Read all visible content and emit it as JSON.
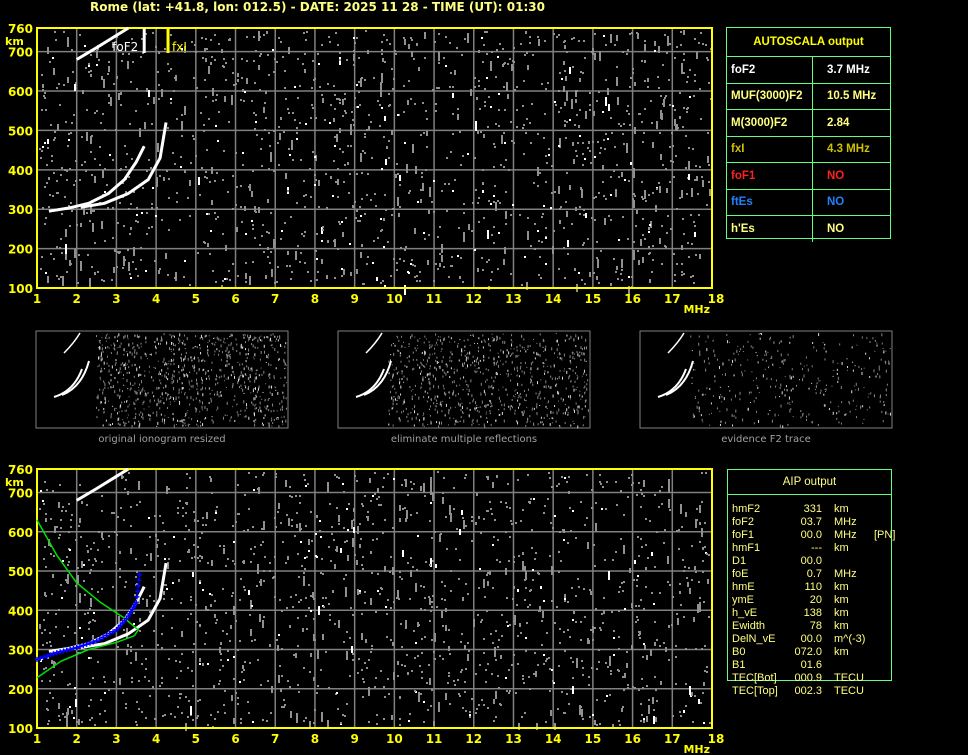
{
  "header": {
    "title": "Rome (lat: +41.8, lon: 012.5) - DATE: 2025 11 28 - TIME (UT): 01:30"
  },
  "colors": {
    "axis": "#ffff00",
    "grid": "#808080",
    "trace": "#ffffff",
    "noise": "#909090",
    "profile": "#00e000",
    "fitted_points": "#0000ff",
    "table_border": "#60ff80",
    "text": "#ffff80",
    "foF1": "#ff2020",
    "ftEs": "#2080ff",
    "fxI": "#d0c000"
  },
  "autoscala": {
    "title": "AUTOSCALA output",
    "rows": [
      {
        "label": "foF2",
        "value": "3.7 MHz",
        "color": "#ffffff"
      },
      {
        "label": "MUF(3000)F2",
        "value": "10.5 MHz",
        "color": "#ffff80"
      },
      {
        "label": "M(3000)F2",
        "value": "2.84",
        "color": "#ffff80"
      },
      {
        "label": "fxI",
        "value": "4.3 MHz",
        "color": "#d0c000"
      },
      {
        "label": "foF1",
        "value": "NO",
        "color": "#ff2020"
      },
      {
        "label": "ftEs",
        "value": "NO",
        "color": "#2080ff"
      },
      {
        "label": "h'Es",
        "value": "NO",
        "color": "#ffff80"
      }
    ]
  },
  "aip": {
    "title": "AIP output",
    "rows": [
      [
        "hmF2",
        "331",
        "km",
        ""
      ],
      [
        "foF2",
        "03.7",
        "MHz",
        ""
      ],
      [
        "foF1",
        "00.0",
        "MHz",
        "[PN]"
      ],
      [
        "hmF1",
        "---",
        "km",
        ""
      ],
      [
        "D1",
        "00.0",
        "",
        ""
      ],
      [
        "foE",
        "0.7",
        "MHz",
        ""
      ],
      [
        "hmE",
        "110",
        "km",
        ""
      ],
      [
        "ymE",
        "20",
        "km",
        ""
      ],
      [
        "h_vE",
        "138",
        "km",
        ""
      ],
      [
        "Ewidth",
        "78",
        "km",
        ""
      ],
      [
        "DelN_vE",
        "00.0",
        "m^(-3)",
        ""
      ],
      [
        "B0",
        "072.0",
        "km",
        ""
      ],
      [
        "B1",
        "01.6",
        "",
        ""
      ],
      [
        "TEC[Bot]",
        "000.9",
        "TECU",
        ""
      ],
      [
        "TEC[Top]",
        "002.3",
        "TECU",
        ""
      ]
    ]
  },
  "thumbnails": [
    {
      "caption": "original ionogram resized"
    },
    {
      "caption": "eliminate multiple reflections"
    },
    {
      "caption": "evidence F2 trace"
    }
  ],
  "chart_data": [
    {
      "type": "scatter",
      "xlabel": "MHz",
      "ylabel": "km",
      "xlim": [
        1,
        18
      ],
      "ylim": [
        100,
        760
      ],
      "xticks": [
        "1",
        "2",
        "3",
        "4",
        "5",
        "6",
        "7",
        "8",
        "9",
        "10",
        "11",
        "12",
        "13",
        "14",
        "15",
        "16",
        "17",
        "18"
      ],
      "yticks": [
        "100",
        "200",
        "300",
        "400",
        "500",
        "600",
        "700",
        "760"
      ],
      "grid": true,
      "annotations": [
        {
          "text": "foF2",
          "x": 3.7
        },
        {
          "text": "fxI",
          "x": 4.3
        }
      ],
      "traces": [
        {
          "role": "o-trace",
          "points": [
            [
              1.3,
              295
            ],
            [
              1.8,
              303
            ],
            [
              2.3,
              315
            ],
            [
              2.8,
              340
            ],
            [
              3.2,
              375
            ],
            [
              3.5,
              420
            ],
            [
              3.7,
              460
            ]
          ]
        },
        {
          "role": "x-trace",
          "points": [
            [
              2.1,
              305
            ],
            [
              2.7,
              315
            ],
            [
              3.3,
              340
            ],
            [
              3.8,
              375
            ],
            [
              4.1,
              430
            ],
            [
              4.25,
              520
            ]
          ]
        },
        {
          "role": "second-hop",
          "points": [
            [
              2.0,
              680
            ],
            [
              2.5,
              710
            ],
            [
              2.9,
              735
            ],
            [
              3.3,
              760
            ]
          ]
        }
      ]
    },
    {
      "type": "line",
      "xlabel": "MHz",
      "ylabel": "km",
      "xlim": [
        1,
        18
      ],
      "ylim": [
        100,
        760
      ],
      "xticks": [
        "1",
        "2",
        "3",
        "4",
        "5",
        "6",
        "7",
        "8",
        "9",
        "10",
        "11",
        "12",
        "13",
        "14",
        "15",
        "16",
        "17",
        "18"
      ],
      "yticks": [
        "100",
        "200",
        "300",
        "400",
        "500",
        "600",
        "700",
        "760"
      ],
      "grid": true,
      "series": [
        {
          "role": "profile",
          "points": [
            [
              1.0,
              630
            ],
            [
              1.5,
              540
            ],
            [
              2.0,
              470
            ],
            [
              2.6,
              420
            ],
            [
              3.2,
              380
            ],
            [
              3.55,
              350
            ],
            [
              3.45,
              335
            ],
            [
              3.0,
              318
            ],
            [
              2.3,
              300
            ],
            [
              1.6,
              270
            ],
            [
              1.0,
              228
            ]
          ]
        },
        {
          "role": "fitted-points",
          "points": [
            [
              1.0,
              275
            ],
            [
              1.5,
              292
            ],
            [
              2.0,
              305
            ],
            [
              2.5,
              322
            ],
            [
              3.0,
              350
            ],
            [
              3.3,
              385
            ],
            [
              3.5,
              420
            ],
            [
              3.6,
              505
            ]
          ]
        }
      ],
      "traces": [
        {
          "role": "o-trace",
          "points": [
            [
              1.3,
              295
            ],
            [
              1.8,
              303
            ],
            [
              2.3,
              315
            ],
            [
              2.8,
              340
            ],
            [
              3.2,
              375
            ],
            [
              3.5,
              420
            ],
            [
              3.7,
              460
            ]
          ]
        },
        {
          "role": "x-trace",
          "points": [
            [
              2.1,
              305
            ],
            [
              2.7,
              315
            ],
            [
              3.3,
              340
            ],
            [
              3.8,
              375
            ],
            [
              4.1,
              430
            ],
            [
              4.25,
              520
            ]
          ]
        },
        {
          "role": "second-hop",
          "points": [
            [
              2.0,
              680
            ],
            [
              2.5,
              710
            ],
            [
              2.9,
              735
            ],
            [
              3.3,
              760
            ]
          ]
        }
      ]
    }
  ]
}
